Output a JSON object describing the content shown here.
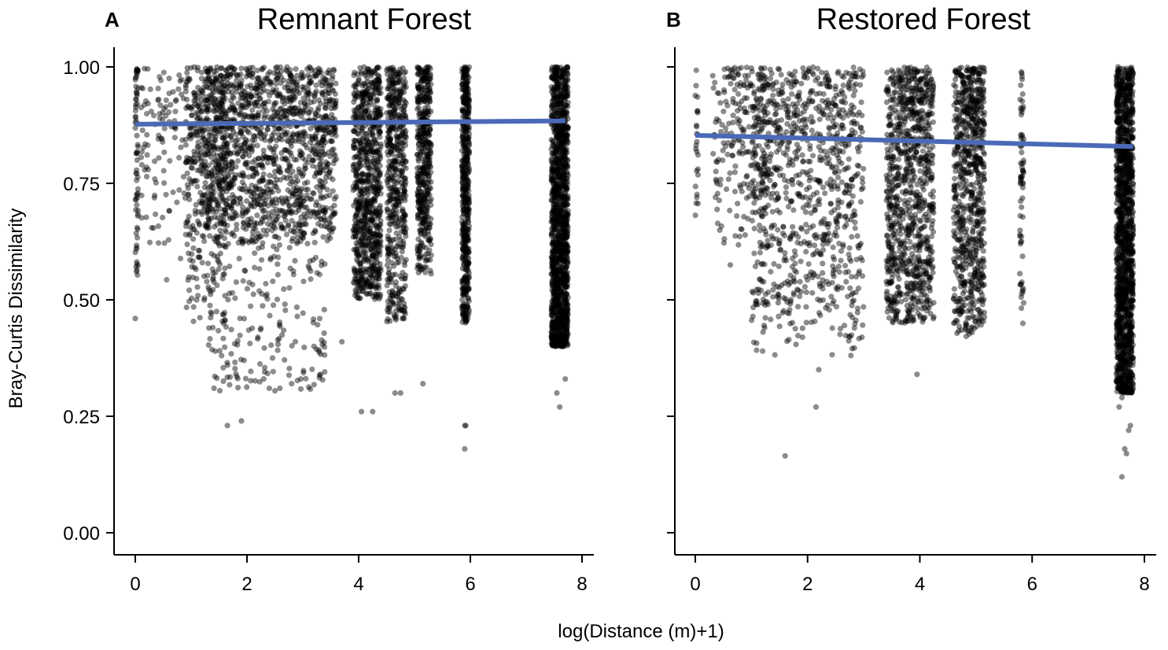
{
  "figure": {
    "xlabel": "log(Distance (m)+1)",
    "ylabel": "Bray-Curtis Dissimilarity",
    "point_color": "#000000",
    "point_opacity": 0.45,
    "trend_color": "#4a6ab8"
  },
  "chart_data": [
    {
      "type": "scatter",
      "panel_label": "A",
      "title": "Remnant Forest",
      "xlim": [
        0,
        8
      ],
      "ylim": [
        0,
        1
      ],
      "x_ticks": [
        "0",
        "2",
        "4",
        "6",
        "8"
      ],
      "y_ticks": [
        "0.00",
        "0.25",
        "0.50",
        "0.75",
        "1.00"
      ],
      "grid": false,
      "trend_line": {
        "x": [
          0,
          7.7
        ],
        "y": [
          0.877,
          0.884
        ]
      },
      "point_groups": [
        {
          "x_range": [
            0.0,
            0.05
          ],
          "y_range": [
            0.46,
            1.0
          ],
          "count": 70,
          "y_bias": 1.6
        },
        {
          "x_range": [
            0.1,
            1.1
          ],
          "y_range": [
            0.52,
            1.0
          ],
          "count": 140,
          "y_bias": 1.7
        },
        {
          "x_range": [
            0.9,
            1.7
          ],
          "y_range": [
            0.45,
            1.0
          ],
          "count": 260,
          "y_bias": 1.5
        },
        {
          "x_range": [
            1.1,
            3.6
          ],
          "y_range": [
            0.62,
            1.0
          ],
          "count": 1400,
          "y_bias": 1.2
        },
        {
          "x_range": [
            1.3,
            3.4
          ],
          "y_range": [
            0.3,
            0.75
          ],
          "count": 260,
          "y_bias": 0.9
        },
        {
          "x_range": [
            3.9,
            4.4
          ],
          "y_range": [
            0.5,
            1.0
          ],
          "count": 800,
          "y_bias": 1.0
        },
        {
          "x_range": [
            4.5,
            4.85
          ],
          "y_range": [
            0.45,
            1.0
          ],
          "count": 500,
          "y_bias": 1.2
        },
        {
          "x_range": [
            5.05,
            5.3
          ],
          "y_range": [
            0.55,
            1.0
          ],
          "count": 450,
          "y_bias": 1.4
        },
        {
          "x_range": [
            5.85,
            5.98
          ],
          "y_range": [
            0.45,
            1.0
          ],
          "count": 500,
          "y_bias": 1.0
        },
        {
          "x_range": [
            7.45,
            7.75
          ],
          "y_range": [
            0.4,
            1.0
          ],
          "count": 1400,
          "y_bias": 0.8
        }
      ],
      "outliers": [
        {
          "x": 1.65,
          "y": 0.23
        },
        {
          "x": 1.9,
          "y": 0.24
        },
        {
          "x": 1.95,
          "y": 0.37
        },
        {
          "x": 2.3,
          "y": 0.33
        },
        {
          "x": 2.4,
          "y": 0.31
        },
        {
          "x": 2.8,
          "y": 0.32
        },
        {
          "x": 3.2,
          "y": 0.4
        },
        {
          "x": 3.7,
          "y": 0.41
        },
        {
          "x": 4.05,
          "y": 0.26
        },
        {
          "x": 4.25,
          "y": 0.26
        },
        {
          "x": 4.65,
          "y": 0.3
        },
        {
          "x": 4.75,
          "y": 0.3
        },
        {
          "x": 5.15,
          "y": 0.32
        },
        {
          "x": 5.9,
          "y": 0.23
        },
        {
          "x": 5.92,
          "y": 0.23
        },
        {
          "x": 5.9,
          "y": 0.18
        },
        {
          "x": 7.6,
          "y": 0.27
        },
        {
          "x": 7.55,
          "y": 0.3
        },
        {
          "x": 7.7,
          "y": 0.33
        },
        {
          "x": 0.0,
          "y": 0.46
        }
      ]
    },
    {
      "type": "scatter",
      "panel_label": "B",
      "title": "Restored Forest",
      "xlim": [
        0,
        8
      ],
      "ylim": [
        0,
        1
      ],
      "x_ticks": [
        "0",
        "2",
        "4",
        "6",
        "8"
      ],
      "y_ticks": [
        "0.00",
        "0.25",
        "0.50",
        "0.75",
        "1.00"
      ],
      "grid": false,
      "trend_line": {
        "x": [
          0,
          7.8
        ],
        "y": [
          0.853,
          0.829
        ]
      },
      "point_groups": [
        {
          "x_range": [
            0.0,
            0.05
          ],
          "y_range": [
            0.68,
            1.0
          ],
          "count": 25,
          "y_bias": 1.0
        },
        {
          "x_range": [
            0.3,
            1.3
          ],
          "y_range": [
            0.55,
            1.0
          ],
          "count": 220,
          "y_bias": 1.6
        },
        {
          "x_range": [
            1.0,
            3.0
          ],
          "y_range": [
            0.38,
            1.0
          ],
          "count": 900,
          "y_bias": 1.4
        },
        {
          "x_range": [
            3.4,
            4.25
          ],
          "y_range": [
            0.45,
            1.0
          ],
          "count": 950,
          "y_bias": 1.0
        },
        {
          "x_range": [
            4.6,
            4.9
          ],
          "y_range": [
            0.42,
            1.0
          ],
          "count": 380,
          "y_bias": 1.2
        },
        {
          "x_range": [
            4.9,
            5.15
          ],
          "y_range": [
            0.43,
            1.0
          ],
          "count": 380,
          "y_bias": 1.2
        },
        {
          "x_range": [
            5.78,
            5.85
          ],
          "y_range": [
            0.42,
            1.0
          ],
          "count": 70,
          "y_bias": 1.2
        },
        {
          "x_range": [
            7.5,
            7.8
          ],
          "y_range": [
            0.3,
            1.0
          ],
          "count": 1500,
          "y_bias": 0.9
        }
      ],
      "outliers": [
        {
          "x": 1.6,
          "y": 0.165
        },
        {
          "x": 2.15,
          "y": 0.27
        },
        {
          "x": 2.2,
          "y": 0.35
        },
        {
          "x": 3.95,
          "y": 0.34
        },
        {
          "x": 7.6,
          "y": 0.12
        },
        {
          "x": 7.65,
          "y": 0.18
        },
        {
          "x": 7.68,
          "y": 0.17
        },
        {
          "x": 7.55,
          "y": 0.27
        },
        {
          "x": 7.6,
          "y": 0.29
        },
        {
          "x": 7.75,
          "y": 0.23
        },
        {
          "x": 7.72,
          "y": 0.22
        },
        {
          "x": 1.2,
          "y": 0.39
        }
      ]
    }
  ]
}
